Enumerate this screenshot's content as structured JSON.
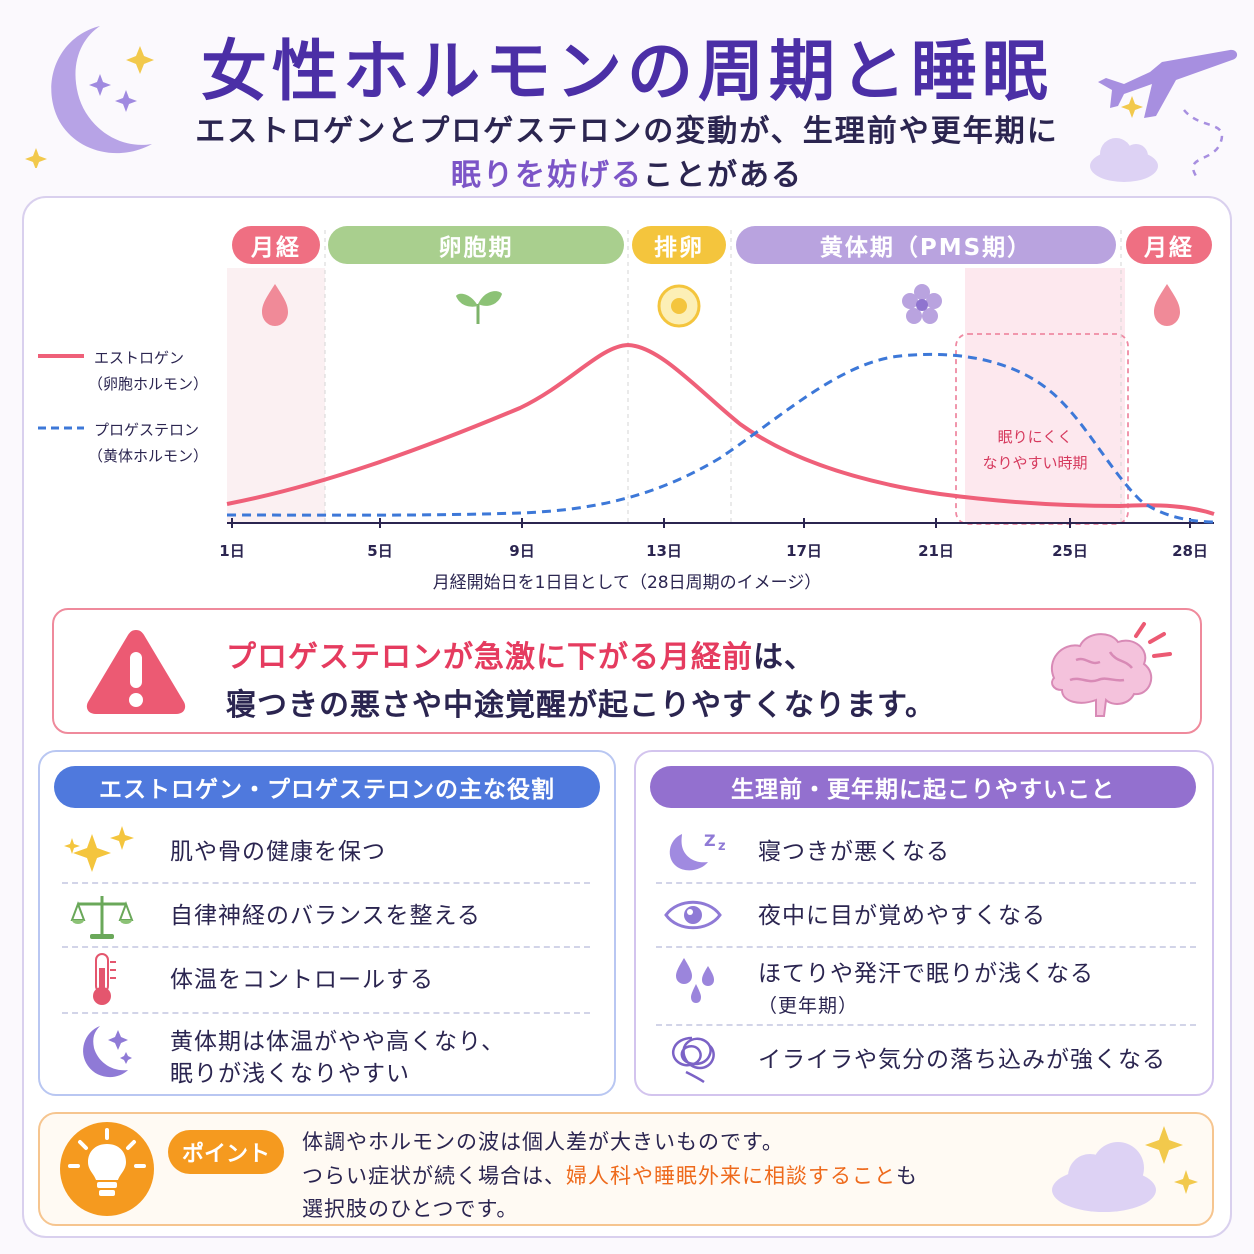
{
  "header": {
    "title": "女性ホルモンの周期と睡眠",
    "subtitle_line1": "エストロゲンとプロゲステロンの変動が、生理前や更年期に",
    "subtitle_line2_highlight": "眠りを妨げる",
    "subtitle_line2_rest": "ことがある"
  },
  "cycle": {
    "phases": [
      {
        "label": "月経",
        "color": "#ef6f82"
      },
      {
        "label": "卵胞期",
        "color": "#a9cf8e"
      },
      {
        "label": "排卵",
        "color": "#f4c53d"
      },
      {
        "label": "黄体期（PMS期）",
        "color": "#b9a3df"
      },
      {
        "label": "月経",
        "color": "#ef6f82"
      }
    ],
    "legend": {
      "estrogen": "エストロゲン",
      "estrogen_sub": "（卵胞ホルモン）",
      "progesterone": "プロゲステロン",
      "progesterone_sub": "（黄体ホルモン）"
    },
    "x_ticks": [
      "1日",
      "5日",
      "9日",
      "13日",
      "17日",
      "21日",
      "25日",
      "28日"
    ],
    "x_caption": "月経開始日を1日目として（28日周期のイメージ）",
    "pms_note_line1": "眠りにくく",
    "pms_note_line2": "なりやすい時期",
    "colors": {
      "estrogen": "#ef6079",
      "progesterone": "#3d78d8"
    }
  },
  "alert": {
    "line1_highlight": "プロゲステロンが急激に下がる月経前",
    "line1_rest": "は、",
    "line2": "寝つきの悪さや中途覚醒が起こりやすくなります。"
  },
  "roles": {
    "title": "エストロゲン・プロゲステロンの主な役割",
    "items": [
      {
        "icon": "sparkle-icon",
        "text": "肌や骨の健康を保つ"
      },
      {
        "icon": "balance-scale-icon",
        "text": "自律神経のバランスを整える"
      },
      {
        "icon": "thermometer-icon",
        "text": "体温をコントロールする"
      },
      {
        "icon": "moon-icon",
        "line1": "黄体期は体温がやや高くなり、",
        "line2": "眠りが浅くなりやすい"
      }
    ]
  },
  "symptoms": {
    "title": "生理前・更年期に起こりやすいこと",
    "items": [
      {
        "icon": "sleepy-moon-icon",
        "text": "寝つきが悪くなる"
      },
      {
        "icon": "eye-icon",
        "text": "夜中に目が覚めやすくなる"
      },
      {
        "icon": "sweat-drops-icon",
        "line1": "ほてりや発汗で眠りが浅くなる",
        "line2": "（更年期）"
      },
      {
        "icon": "tangled-scribble-icon",
        "text": "イライラや気分の落ち込みが強くなる"
      }
    ]
  },
  "point": {
    "badge": "ポイント",
    "line1": "体調やホルモンの波は個人差が大きいものです。",
    "line2_pre": "つらい症状が続く場合は、",
    "line2_highlight": "婦人科や睡眠外来に相談すること",
    "line2_post": "も",
    "line3": "選択肢のひとつです。"
  }
}
